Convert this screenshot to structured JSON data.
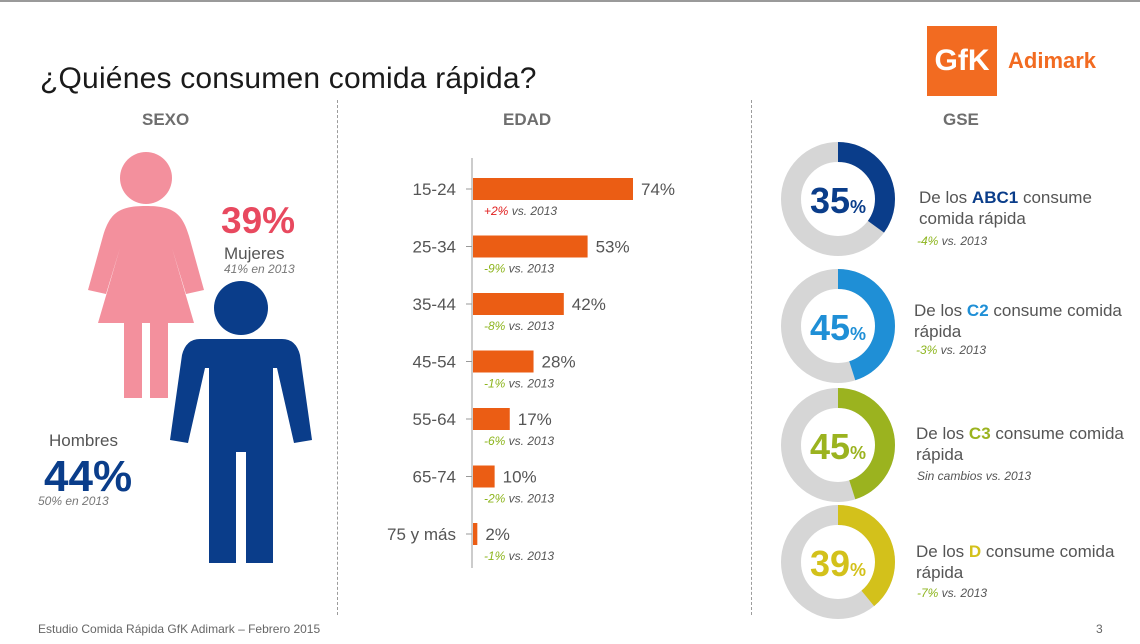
{
  "title": "¿Quiénes consumen comida rápida?",
  "logo": {
    "mark": "GfK",
    "name": "Adimark"
  },
  "sections": {
    "sexo": "SEXO",
    "edad": "EDAD",
    "gse": "GSE"
  },
  "sexo": {
    "women": {
      "pct": "39%",
      "label": "Mujeres",
      "sub": "41% en 2013",
      "color": "#f3909d"
    },
    "men": {
      "pct": "44%",
      "label": "Hombres",
      "sub": "50% en 2013",
      "color": "#0a3d8a"
    }
  },
  "chart_data": [
    {
      "type": "bar",
      "orientation": "horizontal",
      "title": "EDAD",
      "categories": [
        "15-24",
        "25-34",
        "35-44",
        "45-54",
        "55-64",
        "65-74",
        "75 y más"
      ],
      "values": [
        74,
        53,
        42,
        28,
        17,
        10,
        2
      ],
      "value_labels": [
        "74%",
        "53%",
        "42%",
        "28%",
        "17%",
        "10%",
        "2%"
      ],
      "changes": [
        {
          "delta": "+2%",
          "rest": " vs. 2013",
          "color": "#e02020"
        },
        {
          "delta": "-9%",
          "rest": " vs. 2013",
          "color": "#8db51e"
        },
        {
          "delta": "-8%",
          "rest": " vs. 2013",
          "color": "#8db51e"
        },
        {
          "delta": "-1%",
          "rest": " vs. 2013",
          "color": "#8db51e"
        },
        {
          "delta": "-6%",
          "rest": " vs. 2013",
          "color": "#8db51e"
        },
        {
          "delta": "-2%",
          "rest": " vs. 2013",
          "color": "#8db51e"
        },
        {
          "delta": "-1%",
          "rest": " vs. 2013",
          "color": "#8db51e"
        }
      ],
      "xlim": [
        0,
        100
      ],
      "bar_color": "#eb5d14",
      "grid": false
    },
    {
      "type": "pie",
      "title": "GSE",
      "variant": "donut",
      "categories": [
        "ABC1",
        "C2",
        "C3",
        "D"
      ],
      "values": [
        35,
        45,
        45,
        39
      ],
      "value_labels": [
        "35",
        "45",
        "45",
        "39"
      ],
      "unit": "%",
      "colors": [
        "#0a3d8a",
        "#1f8fd6",
        "#9bb31f",
        "#d3c11b"
      ],
      "track_color": "#d6d6d6"
    }
  ],
  "gse": [
    {
      "pre": "De los ",
      "seg": "ABC1",
      "post": " consume",
      "line2": "comida rápida",
      "delta": "-4%",
      "rest": " vs. 2013"
    },
    {
      "pre": "De los ",
      "seg": "C2",
      "post": " consume comida",
      "line2": "rápida",
      "delta": "-3%",
      "rest": " vs. 2013"
    },
    {
      "pre": "De los ",
      "seg": "C3",
      "post": " consume comida",
      "line2": "rápida",
      "delta": "",
      "rest": "Sin cambios vs. 2013"
    },
    {
      "pre": "De los ",
      "seg": "D",
      "post": " consume comida",
      "line2": "rápida",
      "delta": "-7%",
      "rest": " vs. 2013"
    }
  ],
  "footer": "Estudio Comida Rápida GfK Adimark – Febrero 2015",
  "page": "3"
}
